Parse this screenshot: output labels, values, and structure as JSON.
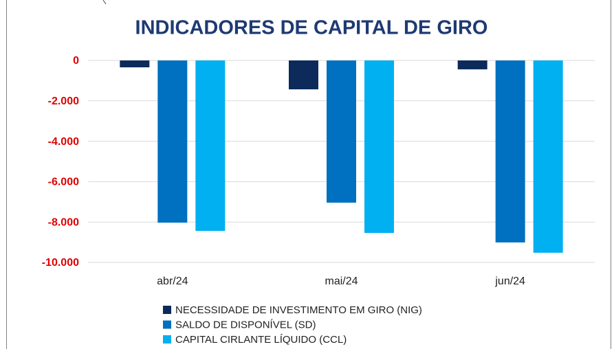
{
  "chart_data": {
    "type": "bar",
    "title": "INDICADORES DE CAPITAL DE GIRO",
    "categories": [
      "abr/24",
      "mai/24",
      "jun/24"
    ],
    "series": [
      {
        "name": "NECESSIDADE DE INVESTIMENTO EM GIRO (NIG)",
        "color": "#0c2a5a",
        "values": [
          -340,
          -1430,
          -440
        ]
      },
      {
        "name": "SALDO DE DISPONÍVEL (SD)",
        "color": "#0070c0",
        "values": [
          -8030,
          -7040,
          -9010
        ]
      },
      {
        "name": "CAPITAL CIRLANTE LÍQUIDO (CCL)",
        "color": "#00b0f0",
        "values": [
          -8440,
          -8540,
          -9520
        ]
      }
    ],
    "ylim": [
      -10000,
      0
    ],
    "yticks": [
      0,
      {
        "value": -2000,
        "label": "-2.000"
      },
      {
        "value": -4000,
        "label": "-4.000"
      },
      {
        "value": -6000,
        "label": "-6.000"
      },
      {
        "value": -8000,
        "label": "-8.000"
      },
      {
        "value": -10000,
        "label": "-10.000"
      }
    ],
    "grid": true,
    "legend": "bottom"
  }
}
